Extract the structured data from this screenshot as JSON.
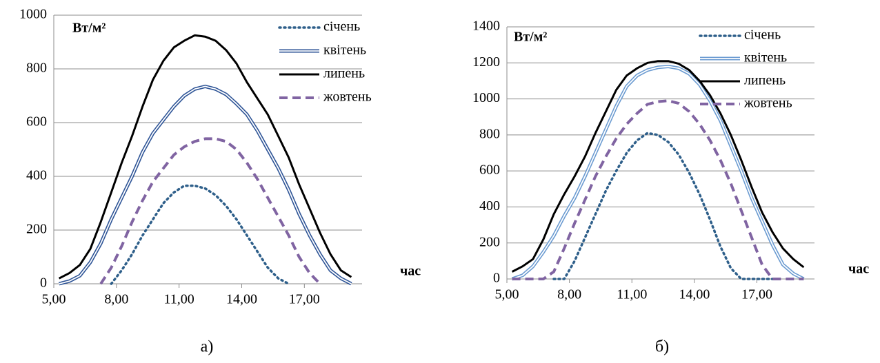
{
  "chart_data": [
    {
      "type": "line",
      "caption": "а)",
      "y_label": "Вт/м²",
      "x_label": "час",
      "x": [
        5.25,
        5.75,
        6.25,
        6.75,
        7.25,
        7.75,
        8.25,
        8.75,
        9.25,
        9.75,
        10.25,
        10.75,
        11.25,
        11.75,
        12.25,
        12.75,
        13.25,
        13.75,
        14.25,
        14.75,
        15.25,
        15.75,
        16.25,
        16.75,
        17.25,
        17.75,
        18.25,
        18.75,
        19.25
      ],
      "xlim": [
        5,
        19.5
      ],
      "xticks": [
        {
          "value": 5,
          "label": "5,00"
        },
        {
          "value": 8,
          "label": "8,00"
        },
        {
          "value": 11,
          "label": "11,00"
        },
        {
          "value": 14,
          "label": "14,00"
        },
        {
          "value": 17,
          "label": "17,00"
        }
      ],
      "ylim": [
        0,
        1000
      ],
      "yticks": [
        0,
        200,
        400,
        600,
        800,
        1000
      ],
      "grid": true,
      "series": [
        {
          "name": "січень",
          "color": "#2e5f8a",
          "style": "dotted",
          "values": [
            null,
            null,
            null,
            null,
            null,
            0,
            50,
            110,
            180,
            240,
            300,
            340,
            365,
            365,
            355,
            330,
            290,
            240,
            180,
            120,
            60,
            20,
            0,
            null,
            null,
            null,
            null,
            null,
            null
          ]
        },
        {
          "name": "квітень",
          "color": "#2f5597",
          "style": "double",
          "values": [
            0,
            10,
            30,
            80,
            150,
            240,
            320,
            400,
            490,
            560,
            610,
            660,
            700,
            725,
            735,
            725,
            705,
            670,
            630,
            570,
            500,
            430,
            350,
            260,
            180,
            110,
            50,
            20,
            0
          ]
        },
        {
          "name": "липень",
          "color": "#000000",
          "style": "solid",
          "values": [
            20,
            40,
            70,
            130,
            230,
            340,
            450,
            550,
            660,
            760,
            830,
            880,
            905,
            925,
            920,
            905,
            870,
            820,
            750,
            690,
            630,
            550,
            470,
            370,
            280,
            190,
            110,
            50,
            25
          ]
        },
        {
          "name": "жовтень",
          "color": "#8064a2",
          "style": "dashed",
          "values": [
            null,
            null,
            null,
            null,
            0,
            60,
            140,
            230,
            310,
            380,
            430,
            480,
            510,
            530,
            540,
            540,
            530,
            500,
            450,
            390,
            320,
            250,
            180,
            100,
            40,
            0,
            null,
            null,
            null
          ]
        }
      ]
    },
    {
      "type": "line",
      "caption": "б)",
      "y_label": "Вт/м²",
      "x_label": "час",
      "x": [
        5.25,
        5.75,
        6.25,
        6.75,
        7.25,
        7.75,
        8.25,
        8.75,
        9.25,
        9.75,
        10.25,
        10.75,
        11.25,
        11.75,
        12.25,
        12.75,
        13.25,
        13.75,
        14.25,
        14.75,
        15.25,
        15.75,
        16.25,
        16.75,
        17.25,
        17.75,
        18.25,
        18.75,
        19.25
      ],
      "xlim": [
        5,
        19.5
      ],
      "xticks": [
        {
          "value": 5,
          "label": "5,00"
        },
        {
          "value": 8,
          "label": "8,00"
        },
        {
          "value": 11,
          "label": "11,00"
        },
        {
          "value": 14,
          "label": "14,00"
        },
        {
          "value": 17,
          "label": "17,00"
        }
      ],
      "ylim": [
        0,
        1400
      ],
      "yticks": [
        0,
        200,
        400,
        600,
        800,
        1000,
        1200,
        1400
      ],
      "grid": true,
      "series": [
        {
          "name": "січень",
          "color": "#2e5f8a",
          "style": "dotted",
          "values": [
            null,
            null,
            null,
            null,
            0,
            0,
            100,
            230,
            360,
            490,
            600,
            700,
            770,
            810,
            800,
            760,
            690,
            590,
            470,
            330,
            180,
            60,
            0,
            0,
            0,
            0,
            null,
            null,
            null
          ]
        },
        {
          "name": "квітень",
          "color": "#6b9bd1",
          "style": "double",
          "values": [
            0,
            20,
            70,
            150,
            240,
            350,
            450,
            570,
            700,
            830,
            960,
            1070,
            1130,
            1160,
            1175,
            1180,
            1170,
            1140,
            1080,
            990,
            880,
            740,
            600,
            450,
            320,
            190,
            80,
            30,
            0
          ]
        },
        {
          "name": "липень",
          "color": "#000000",
          "style": "solid",
          "values": [
            40,
            70,
            110,
            220,
            360,
            470,
            570,
            680,
            810,
            930,
            1050,
            1130,
            1170,
            1200,
            1210,
            1210,
            1195,
            1160,
            1100,
            1020,
            920,
            800,
            660,
            510,
            370,
            260,
            170,
            110,
            65
          ]
        },
        {
          "name": "жовтень",
          "color": "#8064a2",
          "style": "dashed",
          "values": [
            0,
            0,
            0,
            0,
            40,
            170,
            310,
            440,
            570,
            680,
            780,
            860,
            920,
            970,
            985,
            990,
            975,
            930,
            860,
            770,
            660,
            530,
            380,
            230,
            80,
            0,
            0,
            0,
            0
          ]
        }
      ]
    }
  ]
}
